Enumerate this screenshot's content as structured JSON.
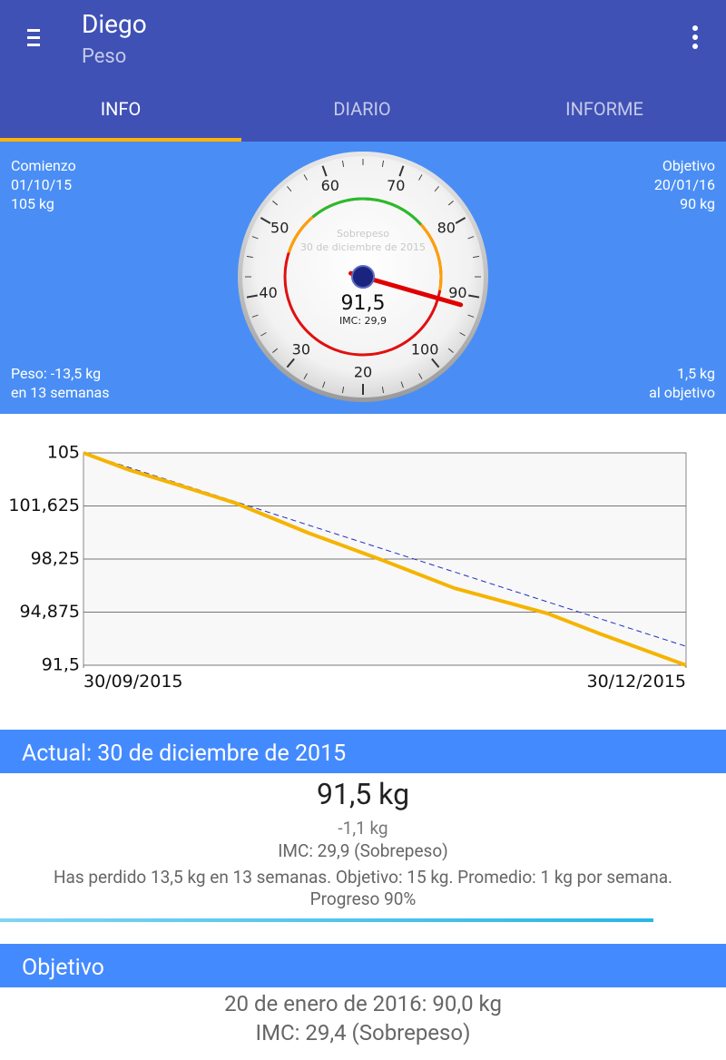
{
  "app_bar": {
    "title": "Diego",
    "subtitle": "Peso"
  },
  "tabs": [
    "INFO",
    "DIARIO",
    "INFORME"
  ],
  "summary": {
    "start": {
      "label": "Comienzo",
      "date": "01/10/15",
      "weight": "105 kg"
    },
    "goal": {
      "label": "Objetivo",
      "date": "20/01/16",
      "weight": "90 kg"
    },
    "change": {
      "line1": "Peso: -13,5 kg",
      "line2": "en 13 semanas"
    },
    "remaining": {
      "line1": "1,5 kg",
      "line2": "al objetivo"
    }
  },
  "gauge": {
    "ticks": [
      20,
      30,
      40,
      50,
      60,
      70,
      80,
      90,
      100
    ],
    "zones": [
      {
        "from": 47,
        "to": 55,
        "color": "#ffa000"
      },
      {
        "from": 55,
        "to": 77,
        "color": "#22c02a"
      },
      {
        "from": 77,
        "to": 90,
        "color": "#ffa000"
      }
    ],
    "base_color": "#e01010",
    "status": "Sobrepeso",
    "date": "30 de diciembre de 2015",
    "value": {
      "value": 91.5,
      "label": "91,5"
    },
    "imc": "IMC: 29,9"
  },
  "chart": {
    "type": "line",
    "xlim": [
      0,
      91
    ],
    "xticks": [
      {
        "value": 0,
        "label": "30/09/2015"
      },
      {
        "value": 91,
        "label": "30/12/2015"
      }
    ],
    "ylim": [
      91.5,
      105
    ],
    "yticks": [
      105,
      {
        "value": 101.625,
        "label": "101,625"
      },
      {
        "value": 98.25,
        "label": "98,25"
      },
      {
        "value": 94.875,
        "label": "94,875"
      },
      {
        "value": 91.5,
        "label": "91,5"
      }
    ],
    "grid": true,
    "series": [
      {
        "color": "#f5b400",
        "x": [
          0,
          7,
          14,
          23,
          34,
          45,
          56,
          70,
          78,
          91
        ],
        "values": [
          105,
          103.9,
          103.0,
          101.8,
          99.9,
          98.2,
          96.4,
          94.8,
          93.5,
          91.5
        ]
      },
      {
        "color": "#2030c0",
        "dashed": true,
        "x": [
          0,
          91
        ],
        "values": [
          105,
          92.7
        ]
      }
    ]
  },
  "current": {
    "header": "Actual: 30 de diciembre de 2015",
    "weight": "91,5 kg",
    "change": "-1,1 kg",
    "imc": "IMC: 29,9 (Sobrepeso)",
    "note": "Has perdido 13,5 kg en 13 semanas. Objetivo: 15 kg. Promedio: 1 kg por semana. Progreso 90%",
    "progress": 90
  },
  "objective": {
    "header": "Objetivo",
    "line1": "20 de enero de 2016: 90,0 kg",
    "line2": "IMC: 29,4 (Sobrepeso)"
  }
}
